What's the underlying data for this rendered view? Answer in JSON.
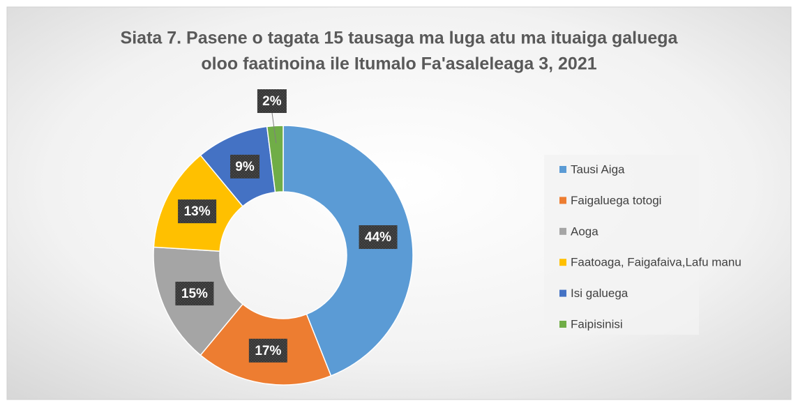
{
  "chart_data": {
    "type": "donut",
    "title": [
      "Siata 7. Pasene o tagata 15 tausaga ma luga atu ma ituaiga galuega",
      "oloo faatinoina ile Itumalo Fa'asaleleaga 3, 2021"
    ],
    "categories": [
      "Tausi Aiga",
      "Faigaluega totogi",
      "Aoga",
      "Faatoaga, Faigafaiva,Lafu manu",
      "Isi galuega",
      "Faipisinisi"
    ],
    "values": [
      44,
      17,
      15,
      13,
      9,
      2
    ],
    "value_labels": [
      "44%",
      "17%",
      "15%",
      "13%",
      "9%",
      "2%"
    ],
    "colors": [
      "#5b9bd5",
      "#ed7d31",
      "#a5a5a5",
      "#ffc000",
      "#4472c4",
      "#70ad47"
    ],
    "legend": "right"
  }
}
